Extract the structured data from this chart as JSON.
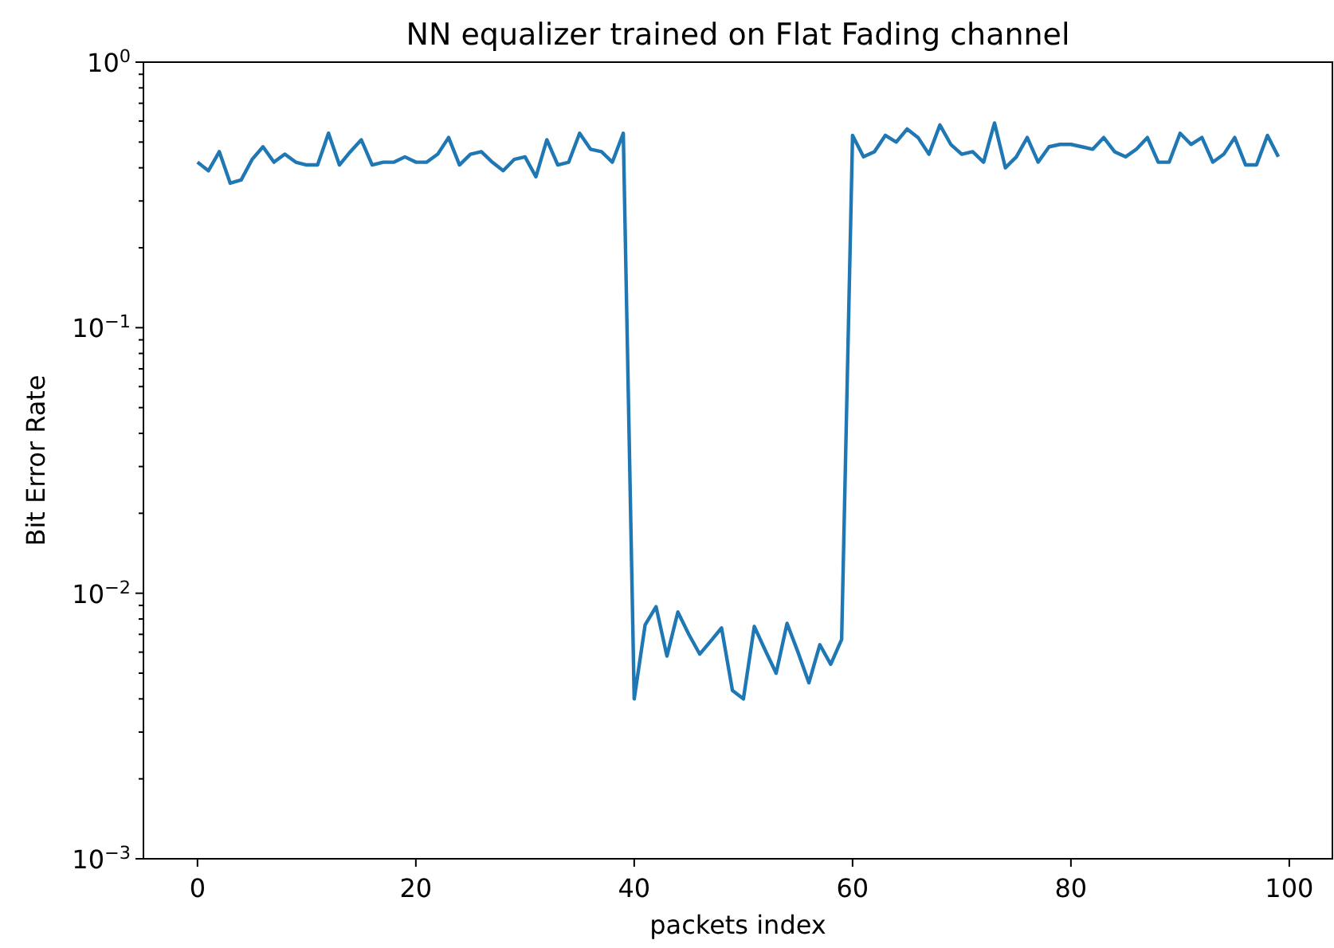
{
  "chart_data": {
    "type": "line",
    "title": "NN equalizer trained on Flat Fading channel",
    "xlabel": "packets index",
    "ylabel": "Bit Error Rate",
    "x": [
      0,
      1,
      2,
      3,
      4,
      5,
      6,
      7,
      8,
      9,
      10,
      11,
      12,
      13,
      14,
      15,
      16,
      17,
      18,
      19,
      20,
      21,
      22,
      23,
      24,
      25,
      26,
      27,
      28,
      29,
      30,
      31,
      32,
      33,
      34,
      35,
      36,
      37,
      38,
      39,
      40,
      41,
      42,
      43,
      44,
      45,
      46,
      47,
      48,
      49,
      50,
      51,
      52,
      53,
      54,
      55,
      56,
      57,
      58,
      59,
      60,
      61,
      62,
      63,
      64,
      65,
      66,
      67,
      68,
      69,
      70,
      71,
      72,
      73,
      74,
      75,
      76,
      77,
      78,
      79,
      80,
      81,
      82,
      83,
      84,
      85,
      86,
      87,
      88,
      89,
      90,
      91,
      92,
      93,
      94,
      95,
      96,
      97,
      98,
      99
    ],
    "series": [
      {
        "color": "#1f77b4",
        "values": [
          0.42,
          0.39,
          0.46,
          0.35,
          0.36,
          0.43,
          0.48,
          0.42,
          0.45,
          0.42,
          0.41,
          0.41,
          0.54,
          0.41,
          0.46,
          0.51,
          0.41,
          0.42,
          0.42,
          0.44,
          0.42,
          0.42,
          0.45,
          0.52,
          0.41,
          0.45,
          0.46,
          0.42,
          0.39,
          0.43,
          0.44,
          0.37,
          0.51,
          0.41,
          0.42,
          0.54,
          0.47,
          0.46,
          0.42,
          0.54,
          0.004,
          0.0076,
          0.0089,
          0.0058,
          0.0085,
          0.007,
          0.0059,
          0.0066,
          0.0074,
          0.0043,
          0.004,
          0.0075,
          0.0061,
          0.005,
          0.0077,
          0.006,
          0.0046,
          0.0064,
          0.0054,
          0.0067,
          0.53,
          0.44,
          0.46,
          0.53,
          0.5,
          0.56,
          0.52,
          0.45,
          0.58,
          0.49,
          0.45,
          0.46,
          0.42,
          0.59,
          0.4,
          0.44,
          0.52,
          0.42,
          0.48,
          0.49,
          0.49,
          0.48,
          0.47,
          0.52,
          0.46,
          0.44,
          0.47,
          0.52,
          0.42,
          0.42,
          0.54,
          0.49,
          0.52,
          0.42,
          0.45,
          0.52,
          0.41,
          0.41,
          0.53,
          0.44
        ]
      }
    ],
    "xlim": [
      -4.95,
      103.95
    ],
    "xticks": [
      0,
      20,
      40,
      60,
      80,
      100
    ],
    "ylim": [
      0.001,
      1
    ],
    "log": "y",
    "yticks": [
      {
        "value": 0.001,
        "label": "10$^{−3}$"
      },
      {
        "value": 0.002,
        "label": null
      },
      {
        "value": 0.003,
        "label": null
      },
      {
        "value": 0.004,
        "label": null
      },
      {
        "value": 0.005,
        "label": null
      },
      {
        "value": 0.006,
        "label": null
      },
      {
        "value": 0.007,
        "label": null
      },
      {
        "value": 0.008,
        "label": null
      },
      {
        "value": 0.009,
        "label": null
      },
      {
        "value": 0.01,
        "label": "10$^{−2}$"
      },
      {
        "value": 0.02,
        "label": null
      },
      {
        "value": 0.03,
        "label": null
      },
      {
        "value": 0.04,
        "label": null
      },
      {
        "value": 0.05,
        "label": null
      },
      {
        "value": 0.06,
        "label": null
      },
      {
        "value": 0.07,
        "label": null
      },
      {
        "value": 0.08,
        "label": null
      },
      {
        "value": 0.09,
        "label": null
      },
      {
        "value": 0.1,
        "label": "10$^{−1}$"
      },
      {
        "value": 0.2,
        "label": null
      },
      {
        "value": 0.3,
        "label": null
      },
      {
        "value": 0.4,
        "label": null
      },
      {
        "value": 0.5,
        "label": null
      },
      {
        "value": 0.6,
        "label": null
      },
      {
        "value": 0.7,
        "label": null
      },
      {
        "value": 0.8,
        "label": null
      },
      {
        "value": 0.9,
        "label": null
      },
      {
        "value": 1,
        "label": "10$^{0}$"
      }
    ],
    "grid": false
  }
}
